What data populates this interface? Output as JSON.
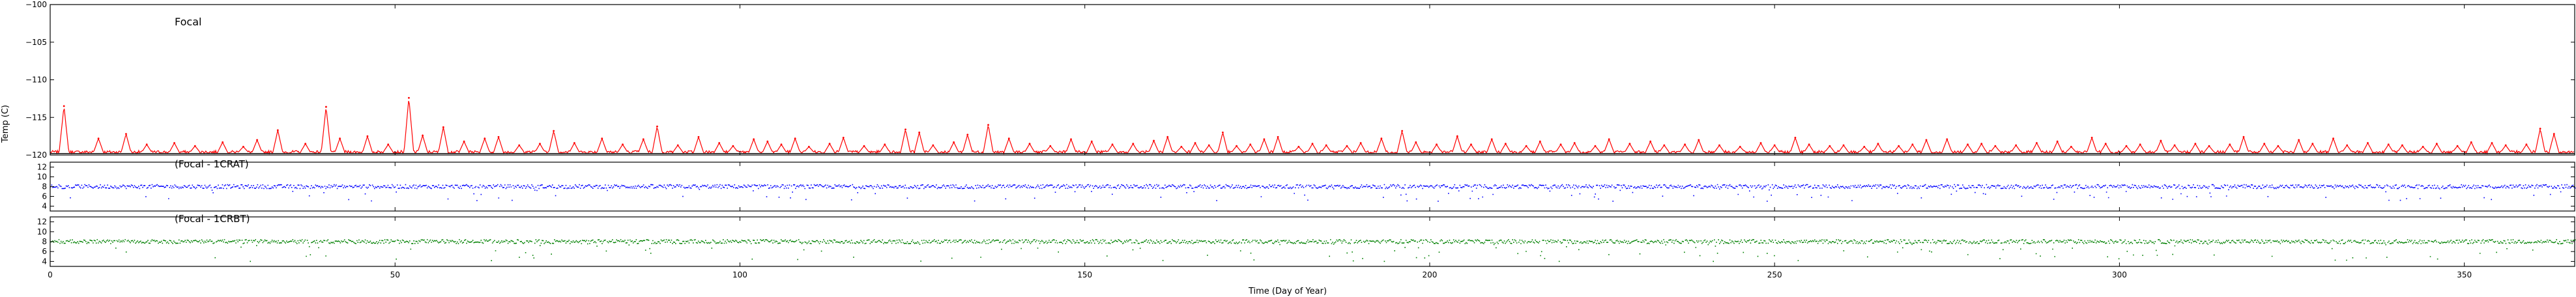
{
  "figure": {
    "xlabel": "Time (Day of Year)",
    "ylabel": "Temp (C)"
  },
  "chart_data": [
    {
      "type": "line",
      "title": "Focal",
      "xlabel": "",
      "ylabel": "Temp (C)",
      "xlim": [
        0,
        366
      ],
      "ylim": [
        -120,
        -100
      ],
      "yticks": [
        -120,
        -115,
        -110,
        -105,
        -100
      ],
      "ytick_labels": [
        "−120",
        "−115",
        "−110",
        "−105",
        "−100"
      ],
      "series": [
        {
          "name": "Focal",
          "color": "#ff0000",
          "baseline": -119.6,
          "spikes": [
            {
              "x": 2,
              "y": -113.5
            },
            {
              "x": 7,
              "y": -117.8
            },
            {
              "x": 11,
              "y": -117.2
            },
            {
              "x": 14,
              "y": -118.6
            },
            {
              "x": 18,
              "y": -118.4
            },
            {
              "x": 21,
              "y": -118.8
            },
            {
              "x": 25,
              "y": -118.3
            },
            {
              "x": 28,
              "y": -118.9
            },
            {
              "x": 30,
              "y": -118.0
            },
            {
              "x": 33,
              "y": -116.7
            },
            {
              "x": 37,
              "y": -118.5
            },
            {
              "x": 40,
              "y": -113.6
            },
            {
              "x": 42,
              "y": -117.8
            },
            {
              "x": 46,
              "y": -117.5
            },
            {
              "x": 49,
              "y": -118.6
            },
            {
              "x": 52,
              "y": -112.4
            },
            {
              "x": 54,
              "y": -117.4
            },
            {
              "x": 57,
              "y": -116.3
            },
            {
              "x": 60,
              "y": -118.2
            },
            {
              "x": 63,
              "y": -117.8
            },
            {
              "x": 65,
              "y": -117.6
            },
            {
              "x": 68,
              "y": -118.7
            },
            {
              "x": 71,
              "y": -118.5
            },
            {
              "x": 73,
              "y": -116.8
            },
            {
              "x": 76,
              "y": -118.4
            },
            {
              "x": 80,
              "y": -117.8
            },
            {
              "x": 83,
              "y": -118.6
            },
            {
              "x": 86,
              "y": -117.9
            },
            {
              "x": 88,
              "y": -116.2
            },
            {
              "x": 91,
              "y": -118.7
            },
            {
              "x": 94,
              "y": -117.6
            },
            {
              "x": 97,
              "y": -118.4
            },
            {
              "x": 99,
              "y": -118.8
            },
            {
              "x": 102,
              "y": -117.9
            },
            {
              "x": 104,
              "y": -118.2
            },
            {
              "x": 106,
              "y": -118.6
            },
            {
              "x": 108,
              "y": -117.8
            },
            {
              "x": 110,
              "y": -118.9
            },
            {
              "x": 113,
              "y": -118.5
            },
            {
              "x": 115,
              "y": -117.7
            },
            {
              "x": 118,
              "y": -118.8
            },
            {
              "x": 121,
              "y": -118.6
            },
            {
              "x": 124,
              "y": -116.6
            },
            {
              "x": 126,
              "y": -117.0
            },
            {
              "x": 128,
              "y": -118.7
            },
            {
              "x": 131,
              "y": -118.3
            },
            {
              "x": 133,
              "y": -117.3
            },
            {
              "x": 136,
              "y": -116.0
            },
            {
              "x": 139,
              "y": -117.8
            },
            {
              "x": 142,
              "y": -118.5
            },
            {
              "x": 145,
              "y": -118.8
            },
            {
              "x": 148,
              "y": -117.9
            },
            {
              "x": 151,
              "y": -118.2
            },
            {
              "x": 154,
              "y": -118.6
            },
            {
              "x": 157,
              "y": -118.5
            },
            {
              "x": 160,
              "y": -118.1
            },
            {
              "x": 162,
              "y": -117.6
            },
            {
              "x": 164,
              "y": -118.9
            },
            {
              "x": 166,
              "y": -118.4
            },
            {
              "x": 168,
              "y": -118.7
            },
            {
              "x": 170,
              "y": -117.0
            },
            {
              "x": 172,
              "y": -118.8
            },
            {
              "x": 174,
              "y": -118.6
            },
            {
              "x": 176,
              "y": -117.9
            },
            {
              "x": 178,
              "y": -117.6
            },
            {
              "x": 181,
              "y": -118.9
            },
            {
              "x": 183,
              "y": -118.5
            },
            {
              "x": 185,
              "y": -118.7
            },
            {
              "x": 188,
              "y": -118.8
            },
            {
              "x": 190,
              "y": -118.4
            },
            {
              "x": 193,
              "y": -117.8
            },
            {
              "x": 196,
              "y": -116.8
            },
            {
              "x": 198,
              "y": -118.3
            },
            {
              "x": 201,
              "y": -118.6
            },
            {
              "x": 204,
              "y": -117.5
            },
            {
              "x": 206,
              "y": -118.6
            },
            {
              "x": 209,
              "y": -117.9
            },
            {
              "x": 211,
              "y": -118.5
            },
            {
              "x": 214,
              "y": -118.8
            },
            {
              "x": 216,
              "y": -118.2
            },
            {
              "x": 219,
              "y": -118.6
            },
            {
              "x": 221,
              "y": -118.4
            },
            {
              "x": 224,
              "y": -118.8
            },
            {
              "x": 226,
              "y": -117.9
            },
            {
              "x": 229,
              "y": -118.5
            },
            {
              "x": 232,
              "y": -118.2
            },
            {
              "x": 234,
              "y": -118.7
            },
            {
              "x": 237,
              "y": -118.6
            },
            {
              "x": 239,
              "y": -118.0
            },
            {
              "x": 242,
              "y": -118.7
            },
            {
              "x": 245,
              "y": -118.9
            },
            {
              "x": 248,
              "y": -118.4
            },
            {
              "x": 250,
              "y": -118.7
            },
            {
              "x": 253,
              "y": -117.7
            },
            {
              "x": 255,
              "y": -118.6
            },
            {
              "x": 258,
              "y": -118.8
            },
            {
              "x": 260,
              "y": -118.7
            },
            {
              "x": 263,
              "y": -118.9
            },
            {
              "x": 265,
              "y": -118.5
            },
            {
              "x": 268,
              "y": -118.8
            },
            {
              "x": 270,
              "y": -118.6
            },
            {
              "x": 272,
              "y": -118.0
            },
            {
              "x": 275,
              "y": -117.9
            },
            {
              "x": 278,
              "y": -118.6
            },
            {
              "x": 280,
              "y": -118.5
            },
            {
              "x": 282,
              "y": -118.8
            },
            {
              "x": 285,
              "y": -118.7
            },
            {
              "x": 288,
              "y": -118.4
            },
            {
              "x": 291,
              "y": -118.2
            },
            {
              "x": 293,
              "y": -118.9
            },
            {
              "x": 296,
              "y": -117.7
            },
            {
              "x": 298,
              "y": -118.5
            },
            {
              "x": 301,
              "y": -118.8
            },
            {
              "x": 303,
              "y": -118.6
            },
            {
              "x": 306,
              "y": -118.1
            },
            {
              "x": 308,
              "y": -118.7
            },
            {
              "x": 311,
              "y": -118.5
            },
            {
              "x": 313,
              "y": -118.8
            },
            {
              "x": 316,
              "y": -118.6
            },
            {
              "x": 318,
              "y": -117.6
            },
            {
              "x": 321,
              "y": -118.5
            },
            {
              "x": 323,
              "y": -118.8
            },
            {
              "x": 326,
              "y": -118.0
            },
            {
              "x": 328,
              "y": -118.5
            },
            {
              "x": 331,
              "y": -117.8
            },
            {
              "x": 333,
              "y": -118.7
            },
            {
              "x": 336,
              "y": -118.4
            },
            {
              "x": 339,
              "y": -118.6
            },
            {
              "x": 341,
              "y": -118.7
            },
            {
              "x": 344,
              "y": -118.9
            },
            {
              "x": 346,
              "y": -118.5
            },
            {
              "x": 349,
              "y": -118.8
            },
            {
              "x": 351,
              "y": -118.3
            },
            {
              "x": 354,
              "y": -118.4
            },
            {
              "x": 356,
              "y": -118.7
            },
            {
              "x": 359,
              "y": -118.6
            },
            {
              "x": 361,
              "y": -116.5
            },
            {
              "x": 363,
              "y": -117.2
            }
          ]
        },
        {
          "name": "Focal (black trace)",
          "color": "#000000",
          "values_note": "flat near baseline",
          "y_start": -119.8,
          "y_end": -119.8
        }
      ]
    },
    {
      "type": "scatter",
      "title": "(Focal - 1CRAT)",
      "xlim": [
        0,
        366
      ],
      "ylim": [
        3,
        13
      ],
      "yticks": [
        4,
        6,
        8,
        10,
        12
      ],
      "ytick_labels": [
        "4",
        "6",
        "8",
        "10",
        "12"
      ],
      "series": [
        {
          "name": "Focal - 1CRAT",
          "color": "#0000ff",
          "typical": 8.0,
          "dip_min": 5.0
        }
      ]
    },
    {
      "type": "scatter",
      "title": "(Focal - 1CRBT)",
      "xlim": [
        0,
        366
      ],
      "ylim": [
        3,
        13
      ],
      "yticks": [
        4,
        6,
        8,
        10,
        12
      ],
      "ytick_labels": [
        "4",
        "6",
        "8",
        "10",
        "12"
      ],
      "series": [
        {
          "name": "Focal - 1CRBT",
          "color": "#008000",
          "typical": 8.0,
          "dip_min": 4.0
        }
      ]
    }
  ],
  "xticks": [
    0,
    50,
    100,
    150,
    200,
    250,
    300,
    350
  ],
  "xtick_labels": [
    "0",
    "50",
    "100",
    "150",
    "200",
    "250",
    "300",
    "350"
  ]
}
